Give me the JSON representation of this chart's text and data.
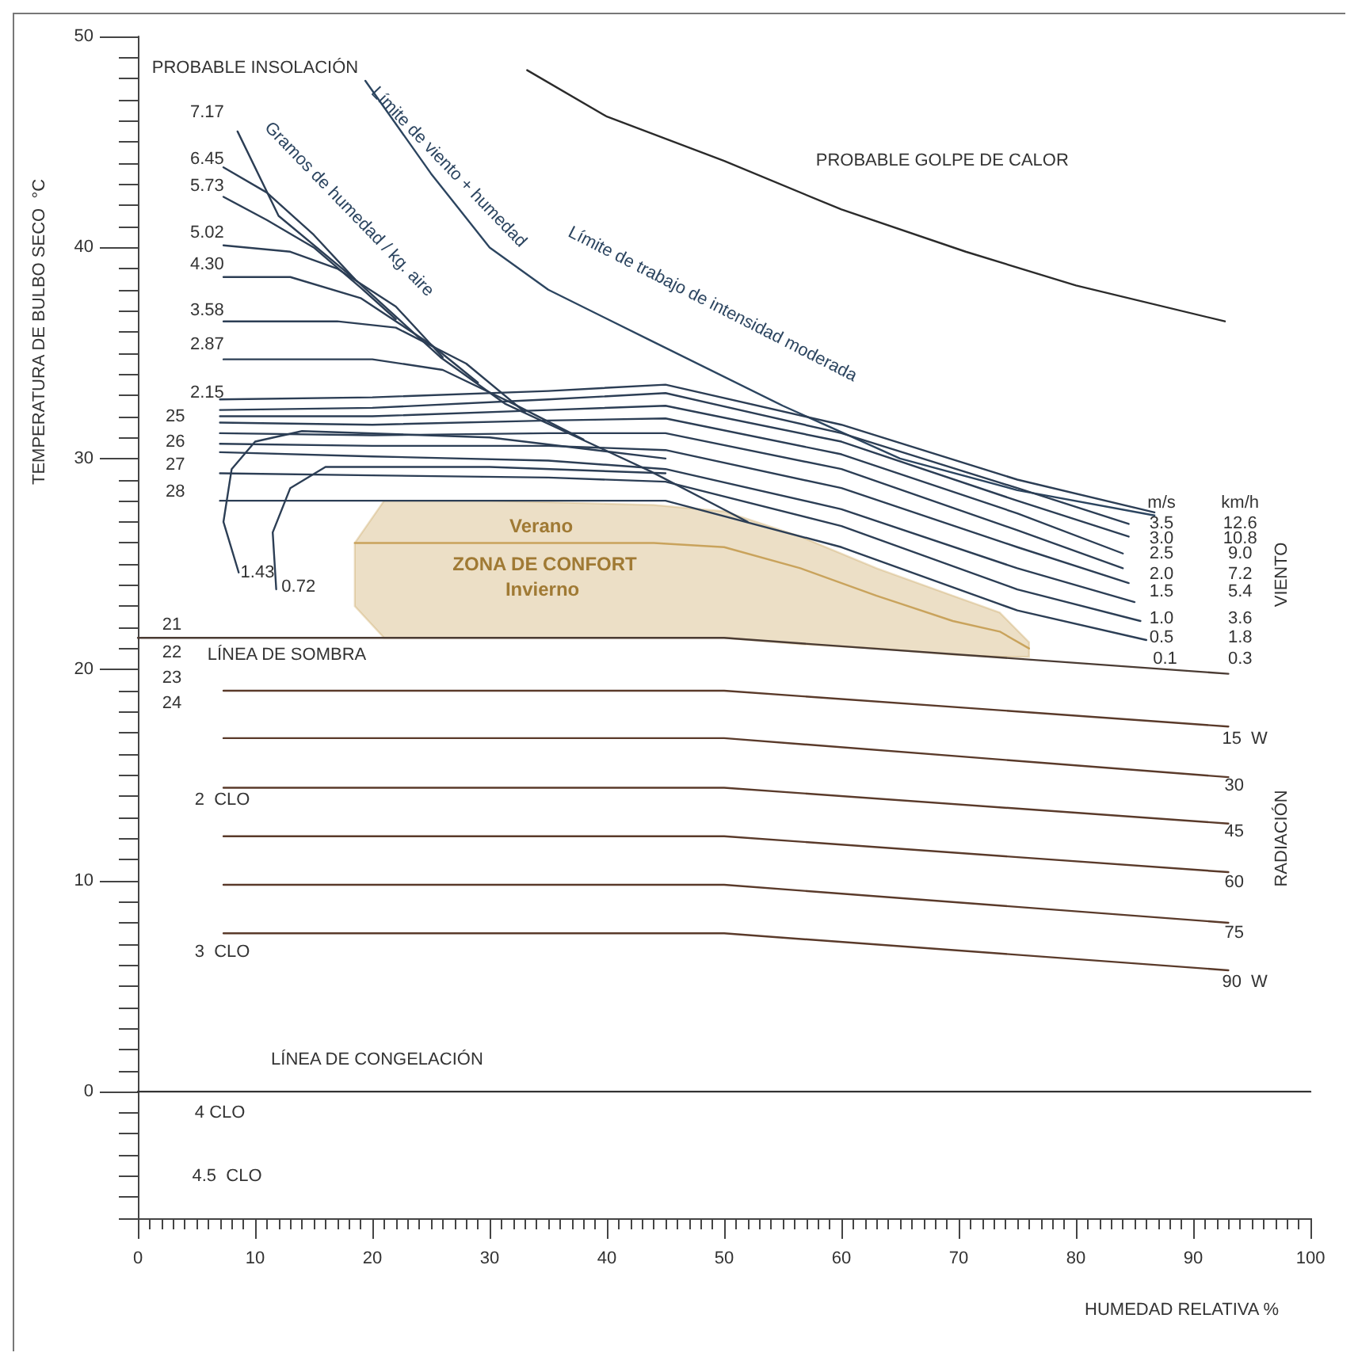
{
  "chart_data": {
    "type": "line",
    "xlabel": "HUMEDAD RELATIVA %",
    "ylabel": "TEMPERATURA DE BULBO SECO  °C",
    "xlim": [
      0,
      100
    ],
    "ylim": [
      -6,
      50
    ],
    "xticks": [
      0,
      10,
      20,
      30,
      40,
      50,
      60,
      70,
      80,
      90,
      100
    ],
    "yticks": [
      0,
      10,
      20,
      30,
      40,
      50
    ],
    "marker": "none",
    "series": [
      {
        "color": "#2b2b2b",
        "x": [
          33.2,
          40,
          50,
          60,
          70.6,
          80,
          92.7
        ],
        "values": [
          48.4,
          46.2,
          44.1,
          41.8,
          39.8,
          38.2,
          36.5
        ]
      },
      {
        "color": "#2c4560",
        "x": [
          19.4,
          25,
          30,
          35,
          43.7,
          55,
          65,
          75,
          86.7
        ],
        "values": [
          47.9,
          43.5,
          40,
          38,
          35.6,
          32.5,
          30,
          28.5,
          27.3
        ]
      },
      {
        "color": "#2c3e55",
        "x": [
          8.5,
          12,
          18.5,
          25.8,
          31.3,
          43.7,
          52
        ],
        "values": [
          45.5,
          41.5,
          38.5,
          34.8,
          32.6,
          29.4,
          27
        ]
      },
      {
        "color": "#2c3e55",
        "x": [
          7.3,
          11,
          15,
          18.5
        ],
        "values": [
          43.8,
          42.6,
          40.6,
          38.5
        ]
      },
      {
        "color": "#2c3e55",
        "x": [
          7.3,
          11,
          15,
          19,
          22
        ],
        "values": [
          42.4,
          41.3,
          40,
          38.1,
          36.6
        ]
      },
      {
        "color": "#2c3e55",
        "x": [
          7.3,
          13,
          17,
          22,
          26
        ],
        "values": [
          40.1,
          39.8,
          39,
          37.2,
          34.8
        ]
      },
      {
        "color": "#2c3e55",
        "x": [
          7.3,
          13,
          19,
          25,
          29
        ],
        "values": [
          38.6,
          38.6,
          37.6,
          35.4,
          33.6
        ]
      },
      {
        "color": "#2c3e55",
        "x": [
          7.3,
          17,
          22,
          28,
          33
        ],
        "values": [
          36.5,
          36.5,
          36.2,
          34.5,
          32.2
        ]
      },
      {
        "color": "#2c3e55",
        "x": [
          7.3,
          20,
          26,
          32,
          38
        ],
        "values": [
          34.7,
          34.7,
          34.2,
          32.6,
          30.9
        ]
      },
      {
        "color": "#2c3e55",
        "x": [
          8.6,
          7.3,
          8,
          10,
          14,
          30,
          45
        ],
        "values": [
          24.6,
          27,
          29.5,
          30.8,
          31.3,
          31,
          30
        ]
      },
      {
        "color": "#2c3e55",
        "x": [
          11.8,
          11.5,
          13,
          16,
          30,
          45
        ],
        "values": [
          23.8,
          26.5,
          28.6,
          29.6,
          29.6,
          29.3
        ]
      },
      {
        "color": "#2c3e55",
        "x": [
          7,
          20,
          35,
          45,
          60,
          75,
          86.7
        ],
        "values": [
          32.8,
          32.9,
          33.2,
          33.5,
          31.6,
          29,
          27.45
        ]
      },
      {
        "color": "#2c3e55",
        "x": [
          7,
          20,
          35,
          45,
          60,
          75,
          84.5
        ],
        "values": [
          32.3,
          32.4,
          32.8,
          33.1,
          31.2,
          28.6,
          26.9
        ]
      },
      {
        "color": "#2c3e55",
        "x": [
          7,
          20,
          35,
          45,
          60,
          75,
          84.5
        ],
        "values": [
          32,
          32,
          32.3,
          32.5,
          30.8,
          28,
          26.3
        ]
      },
      {
        "color": "#2c3e55",
        "x": [
          7,
          20,
          35,
          45,
          60,
          75,
          84
        ],
        "values": [
          31.7,
          31.6,
          31.8,
          31.9,
          30.2,
          27.4,
          25.5
        ]
      },
      {
        "color": "#2c3e55",
        "x": [
          7,
          20,
          35,
          45,
          60,
          75,
          84
        ],
        "values": [
          31.2,
          31.1,
          31.2,
          31.2,
          29.5,
          26.6,
          24.8
        ]
      },
      {
        "color": "#2c3e55",
        "x": [
          7,
          20,
          35,
          45,
          60,
          75,
          84.5
        ],
        "values": [
          30.7,
          30.6,
          30.6,
          30.4,
          28.6,
          25.8,
          24.1
        ]
      },
      {
        "color": "#2c3e55",
        "x": [
          7,
          20,
          35,
          45,
          60,
          75,
          85
        ],
        "values": [
          30.3,
          30.1,
          29.9,
          29.5,
          27.6,
          24.8,
          23.2
        ]
      },
      {
        "color": "#2c3e55",
        "x": [
          7,
          20,
          35,
          45,
          60,
          75,
          85.5
        ],
        "values": [
          29.3,
          29.2,
          29.1,
          28.9,
          26.8,
          23.8,
          22.3
        ]
      },
      {
        "color": "#2c3e55",
        "x": [
          7,
          20,
          35,
          45,
          60,
          75,
          86
        ],
        "values": [
          28,
          28,
          28,
          28,
          25.8,
          22.8,
          21.4
        ]
      },
      {
        "color": "#4a3b33",
        "x": [
          0,
          50,
          93
        ],
        "values": [
          21.5,
          21.5,
          19.8
        ]
      },
      {
        "color": "#5a3a2a",
        "x": [
          7.3,
          50,
          93
        ],
        "values": [
          19,
          19,
          17.3
        ]
      },
      {
        "color": "#5a3a2a",
        "x": [
          7.3,
          50,
          93
        ],
        "values": [
          16.75,
          16.75,
          14.9
        ]
      },
      {
        "color": "#5a3a2a",
        "x": [
          7.3,
          50,
          93
        ],
        "values": [
          14.4,
          14.4,
          12.7
        ]
      },
      {
        "color": "#5a3a2a",
        "x": [
          7.3,
          50,
          93
        ],
        "values": [
          12.1,
          12.1,
          10.4
        ]
      },
      {
        "color": "#5a3a2a",
        "x": [
          7.3,
          50,
          93
        ],
        "values": [
          9.8,
          9.8,
          8
        ]
      },
      {
        "color": "#5a3a2a",
        "x": [
          7.3,
          50,
          93
        ],
        "values": [
          7.5,
          7.5,
          5.75
        ]
      },
      {
        "color": "#333333",
        "x": [
          0,
          100
        ],
        "values": [
          0,
          0
        ]
      },
      {
        "type": "line",
        "color": "#c9a35c",
        "x": [
          18.5,
          21,
          30,
          44,
          50,
          56.5,
          63,
          69.5,
          73.5,
          76
        ],
        "values": [
          26,
          26,
          26,
          26,
          25.8,
          24.8,
          23.5,
          22.3,
          21.8,
          21
        ],
        "lower": [
          23,
          21.5,
          21.5,
          21.5,
          21.5,
          21.2,
          21,
          20.7,
          20.6,
          20.6
        ],
        "upper": [
          26,
          28,
          28,
          27.8,
          27.5,
          26.3,
          24.8,
          23.5,
          22.7,
          21.3
        ]
      }
    ],
    "annotations": [
      "PROBABLE INSOLACIÓN",
      "PROBABLE GOLPE DE CALOR",
      "Límite de viento + humedad",
      "Gramos de humedad / kg. aire",
      "Límite de trabajo de intensidad moderada",
      "7.17",
      "6.45",
      "5.73",
      "5.02",
      "4.30",
      "3.58",
      "2.87",
      "2.15",
      "1.43",
      "0.72",
      "25",
      "26",
      "27",
      "28",
      "21",
      "22",
      "23",
      "24",
      "LÍNEA DE SOMBRA",
      "Verano",
      "ZONA DE CONFORT",
      "Invierno",
      "2  CLO",
      "3  CLO",
      "4 CLO",
      "4.5  CLO",
      "LÍNEA DE CONGELACIÓN",
      "15  W",
      "30",
      "45",
      "60",
      "75",
      "90  W",
      "RADIACIÓN",
      "m/s",
      "km/h",
      "3.5",
      "3.0",
      "2.5",
      "2.0",
      "1.5",
      "1.0",
      "0.5",
      "0.1",
      "12.6",
      "10.8",
      "9.0",
      "7.2",
      "5.4",
      "3.6",
      "1.8",
      "0.3",
      "VIENTO"
    ]
  }
}
